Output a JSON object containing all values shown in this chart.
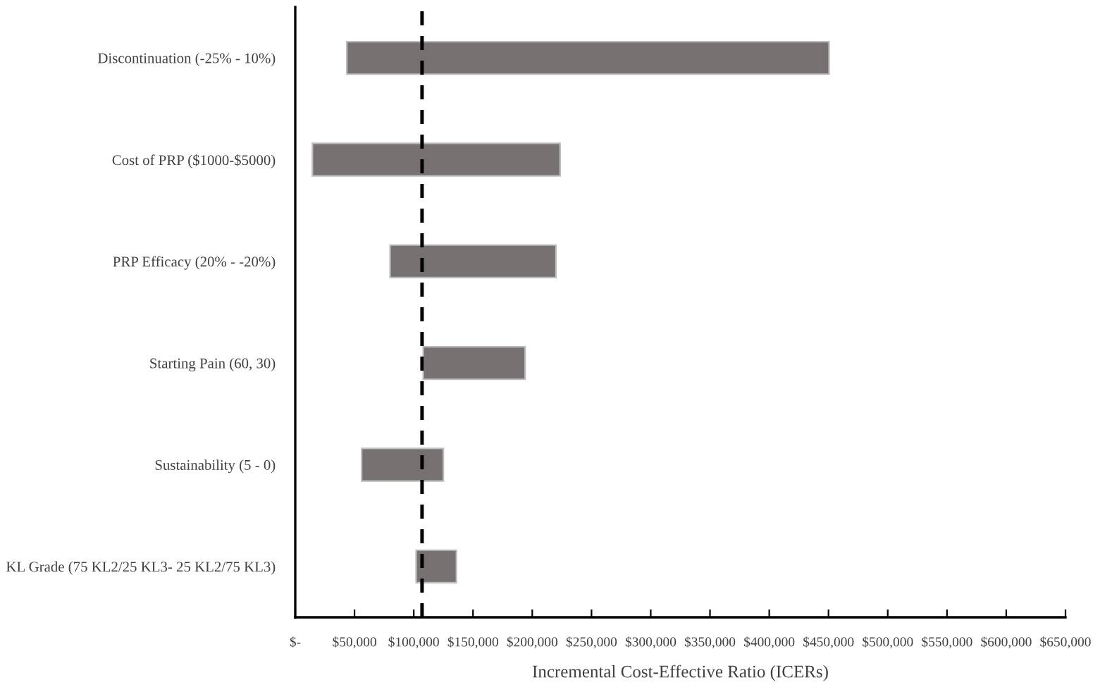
{
  "chart_data": {
    "type": "bar",
    "orientation": "horizontal",
    "xlabel": "Incremental Cost-Effective Ratio (ICERs)",
    "categories": [
      "Discontinuation (-25% - 10%)",
      "Cost of PRP ($1000-$5000)",
      "PRP Efficacy (20% - -20%)",
      "Starting Pain (60, 30)",
      "Sustainability (5 - 0)",
      "KL Grade (75 KL2/25 KL3- 25 KL2/75 KL3)"
    ],
    "base": [
      43500,
      14500,
      80000,
      108000,
      56000,
      102000
    ],
    "values": [
      407000,
      209000,
      140000,
      86000,
      69000,
      34000
    ],
    "color": "#767070",
    "xlim": [
      0,
      650000
    ],
    "xticks": [
      {
        "value": 0,
        "label": "$-"
      },
      {
        "value": 50000,
        "label": "$50,000"
      },
      {
        "value": 100000,
        "label": "$100,000"
      },
      {
        "value": 150000,
        "label": "$150,000"
      },
      {
        "value": 200000,
        "label": "$200,000"
      },
      {
        "value": 250000,
        "label": "$250,000"
      },
      {
        "value": 300000,
        "label": "$300,000"
      },
      {
        "value": 350000,
        "label": "$350,000"
      },
      {
        "value": 400000,
        "label": "$400,000"
      },
      {
        "value": 450000,
        "label": "$450,000"
      },
      {
        "value": 500000,
        "label": "$500,000"
      },
      {
        "value": 550000,
        "label": "$550,000"
      },
      {
        "value": 600000,
        "label": "$600,000"
      },
      {
        "value": 650000,
        "label": "$650,000"
      }
    ],
    "ref_lines": [
      {
        "axis": "x",
        "value": 107000,
        "color": "#000000",
        "line_style": "dashed"
      }
    ],
    "grid": false
  }
}
